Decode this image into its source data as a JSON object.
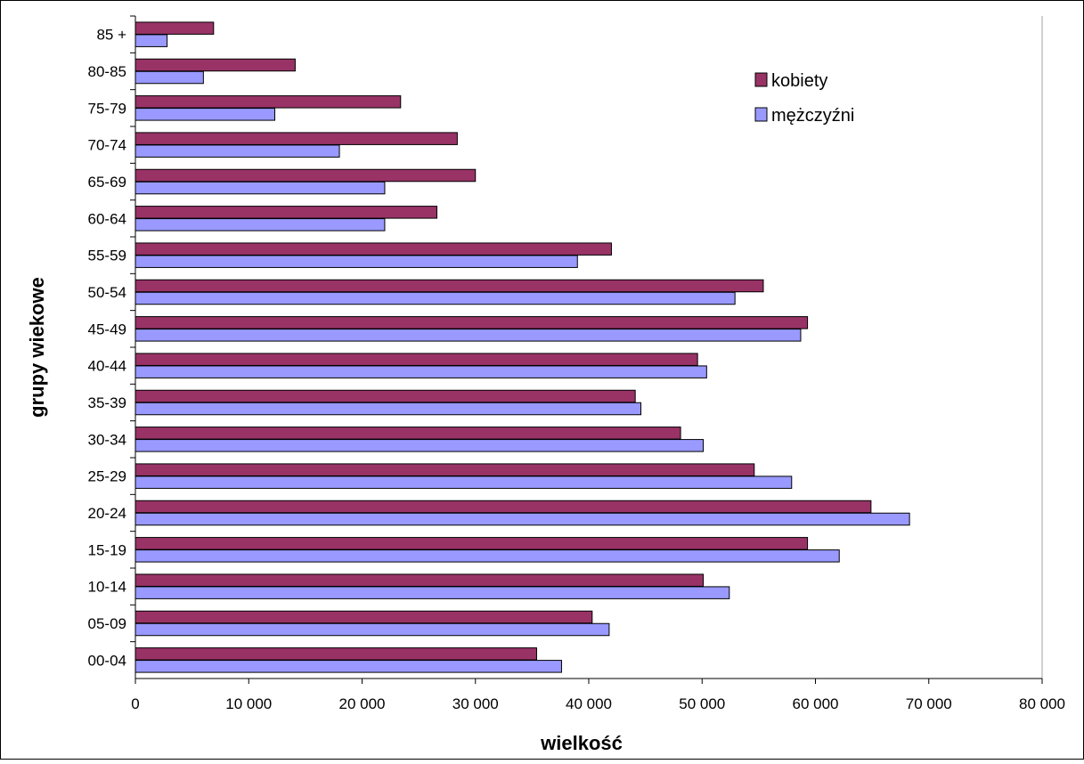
{
  "chart_data": {
    "type": "bar",
    "orientation": "horizontal",
    "xlabel": "wielkość",
    "ylabel": "grupy wiekowe",
    "xlim": [
      0,
      80000
    ],
    "xticks": [
      0,
      10000,
      20000,
      30000,
      40000,
      50000,
      60000,
      70000,
      80000
    ],
    "xtick_labels": [
      "0",
      "10 000",
      "20 000",
      "30 000",
      "40 000",
      "50 000",
      "60 000",
      "70 000",
      "80 000"
    ],
    "categories": [
      "00-04",
      "05-09",
      "10-14",
      "15-19",
      "20-24",
      "25-29",
      "30-34",
      "35-39",
      "40-44",
      "45-49",
      "50-54",
      "55-59",
      "60-64",
      "65-69",
      "70-74",
      "75-79",
      "80-85",
      "85 +"
    ],
    "series": [
      {
        "name": "kobiety",
        "color": "#993366",
        "values": [
          35400,
          40300,
          50100,
          59300,
          64900,
          54600,
          48100,
          44100,
          49600,
          59300,
          55400,
          42000,
          26600,
          30000,
          28400,
          23400,
          14100,
          6900
        ]
      },
      {
        "name": "mężczyźni",
        "color": "#9999FF",
        "values": [
          37600,
          41800,
          52400,
          62100,
          68300,
          57900,
          50100,
          44600,
          50400,
          58700,
          52900,
          39000,
          22000,
          22000,
          18000,
          12300,
          6000,
          2800
        ]
      }
    ],
    "grid": false,
    "legend_position": "top-right"
  }
}
